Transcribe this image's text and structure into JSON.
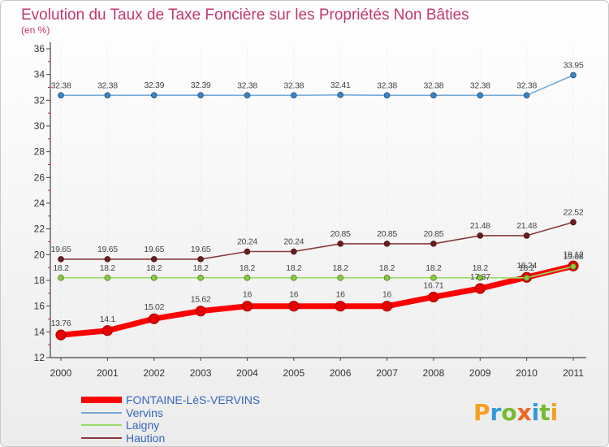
{
  "chart_data": {
    "type": "line",
    "title": "Evolution du Taux de Taxe Foncière sur les Propriétés Non Bâties",
    "subtitle": "(en %)",
    "categories": [
      "2000",
      "2001",
      "2002",
      "2003",
      "2004",
      "2005",
      "2006",
      "2007",
      "2008",
      "2009",
      "2010",
      "2011"
    ],
    "ylim": [
      12,
      36
    ],
    "yticks": [
      12,
      14,
      16,
      18,
      20,
      22,
      24,
      26,
      28,
      30,
      32,
      34,
      36
    ],
    "legend": "bottom-left",
    "series": [
      {
        "name": "FONTAINE-LèS-VERVINS",
        "values": [
          13.76,
          14.1,
          15.02,
          15.62,
          16,
          16,
          16,
          16,
          16.71,
          17.37,
          18.24,
          19.12
        ],
        "color": "#ff0000",
        "point_color": "#e60000",
        "point_stroke": "#b00000"
      },
      {
        "name": "Vervins",
        "values": [
          32.38,
          32.38,
          32.39,
          32.39,
          32.38,
          32.38,
          32.41,
          32.38,
          32.38,
          32.38,
          32.38,
          33.95
        ],
        "color": "#74a9d8",
        "point_color": "#3d85c6",
        "point_stroke": "#1f4e79"
      },
      {
        "name": "Laigny",
        "values": [
          18.2,
          18.2,
          18.2,
          18.2,
          18.2,
          18.2,
          18.2,
          18.2,
          18.2,
          18.2,
          18.2,
          19.08
        ],
        "color": "#99dd66",
        "point_color": "#88cc44",
        "point_stroke": "#4e7a1e"
      },
      {
        "name": "Haution",
        "values": [
          19.65,
          19.65,
          19.65,
          19.65,
          20.24,
          20.24,
          20.85,
          20.85,
          20.85,
          21.48,
          21.48,
          22.52
        ],
        "color": "#8b3a3a",
        "point_color": "#6b1e1e",
        "point_stroke": "#3d0e0e"
      }
    ]
  },
  "colors": {
    "title": "#c2366e",
    "legend_text": "#3366bb",
    "axis": "#444444",
    "minor_tick": "#d03030",
    "grid": "#dddddd"
  },
  "logo": {
    "text": "Proxiti",
    "colors": [
      "#f5a020",
      "#3399dd",
      "#77bb33",
      "#ee6622",
      "#3399dd",
      "#77bb33",
      "#f5a020"
    ]
  }
}
